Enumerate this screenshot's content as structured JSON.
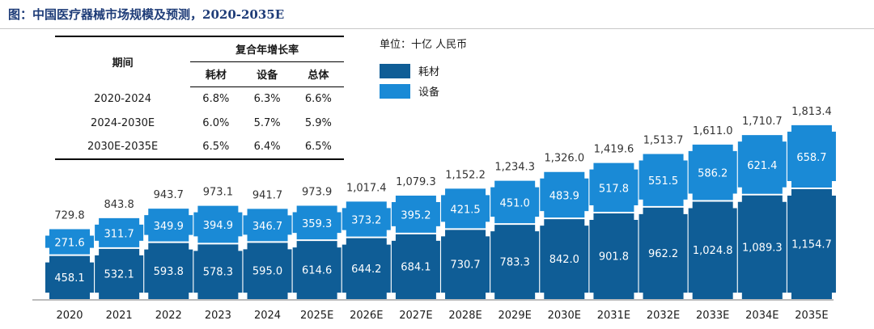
{
  "title": "图：中国医疗器械市场规模及预测，2020-2035E",
  "table": {
    "col_period": "期间",
    "col_group": "复合年增长率",
    "cols": [
      "耗材",
      "设备",
      "总体"
    ],
    "rows": [
      {
        "period": "2020-2024",
        "values": [
          "6.8%",
          "6.3%",
          "6.6%"
        ]
      },
      {
        "period": "2024-2030E",
        "values": [
          "6.0%",
          "5.7%",
          "5.9%"
        ]
      },
      {
        "period": "2030E-2035E",
        "values": [
          "6.5%",
          "6.4%",
          "6.5%"
        ]
      }
    ]
  },
  "legend": {
    "unit": "单位：十亿 人民币",
    "items": [
      {
        "label": "耗材",
        "color": "#0f5d96"
      },
      {
        "label": "设备",
        "color": "#1a8ad6"
      }
    ]
  },
  "chart_data": {
    "type": "bar",
    "stacked": true,
    "categories": [
      "2020",
      "2021",
      "2022",
      "2023",
      "2024",
      "2025E",
      "2026E",
      "2027E",
      "2028E",
      "2029E",
      "2030E",
      "2031E",
      "2032E",
      "2033E",
      "2034E",
      "2035E"
    ],
    "series": [
      {
        "name": "耗材",
        "color": "#0f5d96",
        "values": [
          458.1,
          532.1,
          593.8,
          578.3,
          595.0,
          614.6,
          644.2,
          684.1,
          730.7,
          783.3,
          842.0,
          901.8,
          962.2,
          1024.8,
          1089.3,
          1154.7
        ],
        "labels": [
          "458.1",
          "532.1",
          "593.8",
          "578.3",
          "595.0",
          "614.6",
          "644.2",
          "684.1",
          "730.7",
          "783.3",
          "842.0",
          "901.8",
          "962.2",
          "1,024.8",
          "1,089.3",
          "1,154.7"
        ]
      },
      {
        "name": "设备",
        "color": "#1a8ad6",
        "values": [
          271.6,
          311.7,
          349.9,
          394.9,
          346.7,
          359.3,
          373.2,
          395.2,
          421.5,
          451.0,
          483.9,
          517.8,
          551.5,
          586.2,
          621.4,
          658.7
        ],
        "labels": [
          "271.6",
          "311.7",
          "349.9",
          "394.9",
          "346.7",
          "359.3",
          "373.2",
          "395.2",
          "421.5",
          "451.0",
          "483.9",
          "517.8",
          "551.5",
          "586.2",
          "621.4",
          "658.7"
        ]
      }
    ],
    "totals": [
      729.8,
      843.8,
      943.7,
      973.1,
      941.7,
      973.9,
      1017.4,
      1079.3,
      1152.2,
      1234.3,
      1326.0,
      1419.6,
      1513.7,
      1611.0,
      1710.7,
      1813.4
    ],
    "total_labels": [
      "729.8",
      "843.8",
      "943.7",
      "973.1",
      "941.7",
      "973.9",
      "1,017.4",
      "1,079.3",
      "1,152.2",
      "1,234.3",
      "1,326.0",
      "1,419.6",
      "1,513.7",
      "1,611.0",
      "1,710.7",
      "1,813.4"
    ]
  }
}
